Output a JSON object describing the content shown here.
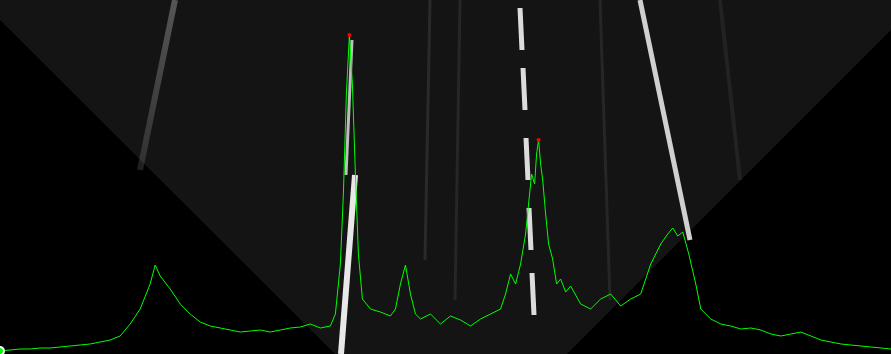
{
  "chart_data": {
    "type": "line",
    "color": "#00ff00",
    "grid": false,
    "tick_labels": false,
    "xlim": [
      0,
      890
    ],
    "ylim": [
      0,
      354
    ],
    "xticks": [
      0,
      890
    ],
    "yticks": [
      0,
      354
    ],
    "x": [
      0,
      10,
      20,
      30,
      40,
      50,
      60,
      70,
      80,
      90,
      100,
      110,
      120,
      130,
      140,
      150,
      155,
      160,
      170,
      180,
      190,
      200,
      210,
      220,
      230,
      240,
      250,
      260,
      270,
      280,
      290,
      300,
      310,
      320,
      330,
      335,
      340,
      343,
      346,
      349,
      352,
      355,
      358,
      362,
      370,
      380,
      390,
      395,
      400,
      405,
      410,
      415,
      420,
      430,
      440,
      450,
      460,
      470,
      480,
      490,
      500,
      505,
      510,
      515,
      520,
      525,
      528,
      531,
      534,
      536,
      538,
      540,
      542,
      545,
      548,
      552,
      556,
      560,
      565,
      570,
      580,
      590,
      600,
      610,
      620,
      630,
      640,
      650,
      660,
      667,
      672,
      677,
      682,
      688,
      695,
      700,
      710,
      720,
      730,
      740,
      750,
      760,
      770,
      780,
      790,
      800,
      810,
      820,
      830,
      840,
      850,
      860,
      870,
      880,
      890
    ],
    "values": [
      3,
      4,
      5,
      5,
      6,
      6,
      7,
      8,
      9,
      10,
      12,
      14,
      18,
      30,
      45,
      70,
      89,
      78,
      65,
      50,
      40,
      32,
      28,
      26,
      24,
      22,
      23,
      24,
      22,
      24,
      26,
      27,
      30,
      26,
      28,
      40,
      90,
      160,
      260,
      319,
      270,
      180,
      100,
      55,
      45,
      42,
      38,
      45,
      70,
      89,
      60,
      40,
      35,
      40,
      30,
      38,
      34,
      28,
      35,
      40,
      45,
      60,
      80,
      70,
      90,
      120,
      150,
      180,
      170,
      200,
      214,
      190,
      175,
      140,
      110,
      95,
      70,
      75,
      62,
      68,
      50,
      45,
      55,
      60,
      48,
      55,
      60,
      90,
      110,
      120,
      126,
      118,
      122,
      100,
      70,
      45,
      35,
      30,
      28,
      25,
      26,
      24,
      20,
      18,
      20,
      22,
      18,
      14,
      12,
      10,
      9,
      8,
      7,
      6,
      5
    ],
    "peaks": {
      "x": [
        349,
        538
      ],
      "values": [
        319,
        214
      ],
      "color": "#ff0000"
    }
  }
}
